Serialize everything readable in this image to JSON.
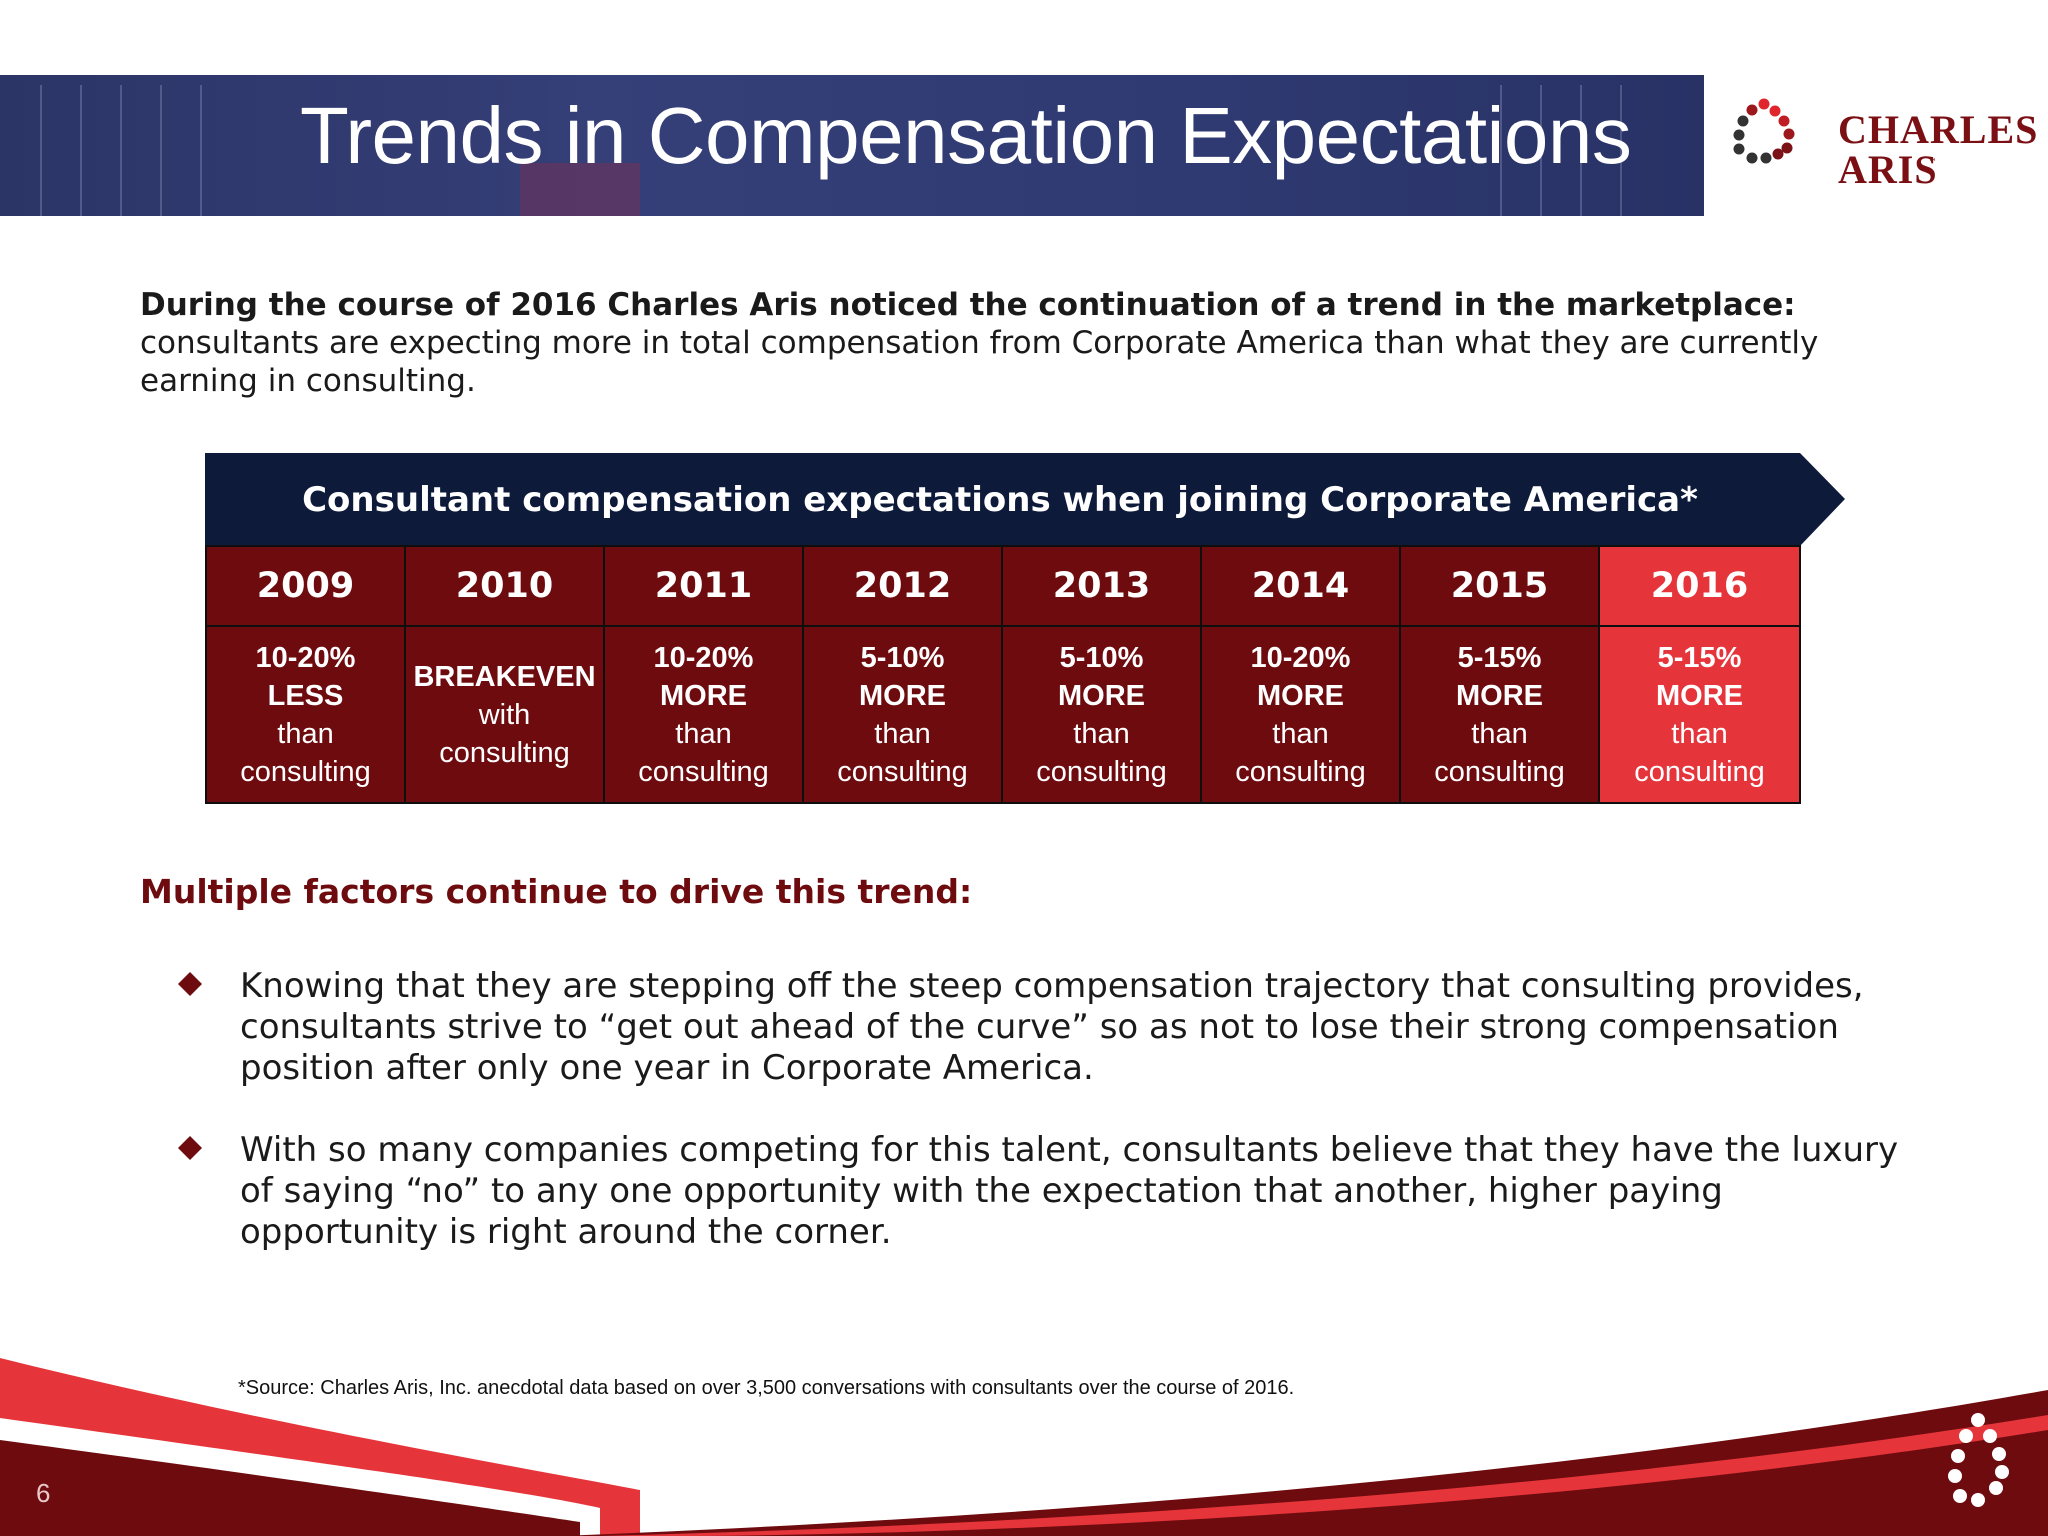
{
  "header": {
    "title": "Trends in Compensation Expectations",
    "logo": {
      "line1": "CHARLES",
      "line2": "ARIS",
      "tm": "™"
    }
  },
  "intro": {
    "bold": "During the course of 2016 Charles Aris noticed the continuation of a trend in the marketplace:",
    "text": "consultants are expecting more in total compensation from Corporate America than what they are currently earning in consulting."
  },
  "table": {
    "banner": "Consultant compensation expectations when joining Corporate America*",
    "columns": [
      {
        "year": "2009",
        "amount": "10-20%",
        "direction": "LESS",
        "prep": "than",
        "ref": "consulting",
        "highlight": false
      },
      {
        "year": "2010",
        "amount": "",
        "direction": "BREAKEVEN",
        "prep": "with",
        "ref": "consulting",
        "highlight": false
      },
      {
        "year": "2011",
        "amount": "10-20%",
        "direction": "MORE",
        "prep": "than",
        "ref": "consulting",
        "highlight": false
      },
      {
        "year": "2012",
        "amount": "5-10%",
        "direction": "MORE",
        "prep": "than",
        "ref": "consulting",
        "highlight": false
      },
      {
        "year": "2013",
        "amount": "5-10%",
        "direction": "MORE",
        "prep": "than",
        "ref": "consulting",
        "highlight": false
      },
      {
        "year": "2014",
        "amount": "10-20%",
        "direction": "MORE",
        "prep": "than",
        "ref": "consulting",
        "highlight": false
      },
      {
        "year": "2015",
        "amount": "5-15%",
        "direction": "MORE",
        "prep": "than",
        "ref": "consulting",
        "highlight": false
      },
      {
        "year": "2016",
        "amount": "5-15%",
        "direction": "MORE",
        "prep": "than",
        "ref": "consulting",
        "highlight": true
      }
    ]
  },
  "factors": {
    "heading": "Multiple factors continue to drive this trend:",
    "bullets": [
      "Knowing that they are stepping off the steep compensation trajectory that consulting provides, consultants strive to “get out ahead of the curve” so as not to lose their strong compensation position after only one year in Corporate America.",
      "With so many companies competing for this talent, consultants believe that they have the luxury of saying “no” to any one opportunity with the expectation that another, higher paying opportunity is right around the corner."
    ]
  },
  "footer": {
    "source": "*Source:  Charles Aris, Inc. anecdotal data based on over 3,500 conversations with consultants over the course of 2016.",
    "page_number": "6"
  },
  "colors": {
    "navy": "#0d1a3a",
    "dark_red": "#6e0b0e",
    "highlight_red": "#e5353b"
  }
}
